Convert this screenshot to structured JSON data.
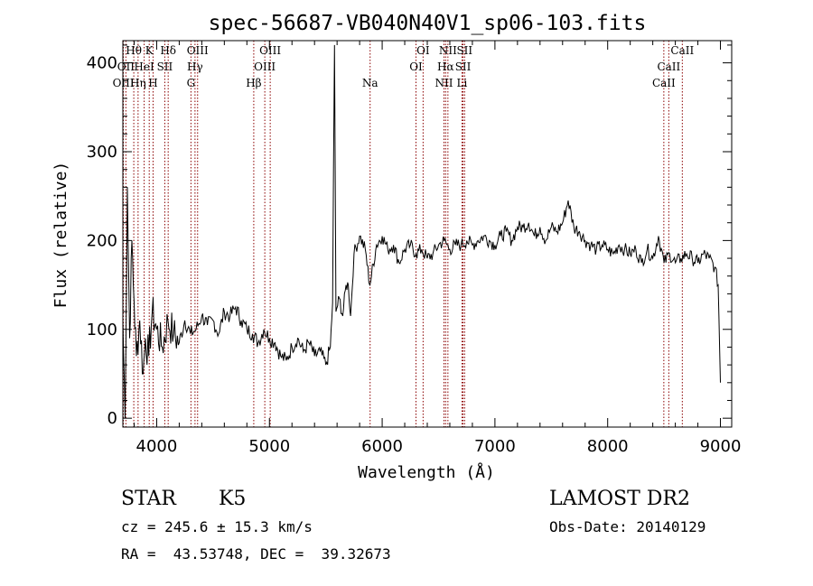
{
  "chart_data": {
    "type": "line",
    "title": "spec-56687-VB040N40V1_sp06-103.fits",
    "xlabel": "Wavelength (Å)",
    "ylabel": "Flux (relative)",
    "xlim": [
      3700,
      9100
    ],
    "ylim": [
      -10,
      425
    ],
    "x_ticks": [
      4000,
      5000,
      6000,
      7000,
      8000,
      9000
    ],
    "y_ticks": [
      0,
      100,
      200,
      300,
      400
    ],
    "series": [
      {
        "x": [
          3700,
          3720,
          3740,
          3760,
          3780,
          3800,
          3820,
          3850,
          3880,
          3900,
          3930,
          3960,
          4000,
          4050,
          4100,
          4150,
          4200,
          4250,
          4300,
          4350,
          4400,
          4450,
          4500,
          4550,
          4600,
          4650,
          4700,
          4750,
          4800,
          4850,
          4900,
          4950,
          5000,
          5050,
          5100,
          5150,
          5200,
          5250,
          5300,
          5350,
          5400,
          5450,
          5500,
          5540,
          5560,
          5577,
          5590,
          5620,
          5650,
          5680,
          5700,
          5720,
          5750,
          5800,
          5850,
          5890,
          5950,
          6000,
          6050,
          6100,
          6150,
          6200,
          6250,
          6300,
          6350,
          6400,
          6450,
          6500,
          6550,
          6600,
          6650,
          6700,
          6750,
          6800,
          6850,
          6900,
          6950,
          7000,
          7050,
          7100,
          7150,
          7200,
          7250,
          7300,
          7350,
          7400,
          7450,
          7500,
          7550,
          7600,
          7650,
          7700,
          7750,
          7800,
          7850,
          7900,
          7950,
          8000,
          8050,
          8100,
          8150,
          8200,
          8250,
          8300,
          8350,
          8400,
          8450,
          8500,
          8550,
          8600,
          8650,
          8700,
          8750,
          8800,
          8850,
          8900,
          8950,
          8980,
          9000
        ],
        "y": [
          110,
          0,
          260,
          90,
          200,
          130,
          70,
          110,
          50,
          90,
          70,
          120,
          100,
          80,
          110,
          95,
          85,
          110,
          95,
          100,
          115,
          105,
          110,
          95,
          120,
          115,
          125,
          110,
          100,
          95,
          85,
          100,
          90,
          85,
          70,
          65,
          80,
          90,
          75,
          85,
          70,
          75,
          60,
          80,
          130,
          420,
          120,
          135,
          115,
          150,
          150,
          115,
          185,
          205,
          190,
          150,
          195,
          205,
          190,
          195,
          175,
          190,
          195,
          185,
          190,
          180,
          185,
          195,
          200,
          190,
          195,
          195,
          200,
          195,
          200,
          205,
          200,
          195,
          205,
          210,
          200,
          215,
          215,
          220,
          205,
          215,
          200,
          215,
          210,
          220,
          245,
          215,
          210,
          200,
          195,
          190,
          195,
          190,
          185,
          195,
          190,
          185,
          190,
          175,
          190,
          180,
          205,
          175,
          185,
          175,
          180,
          185,
          180,
          175,
          185,
          180,
          170,
          150,
          40
        ]
      }
    ],
    "emission_lines": [
      {
        "label": "Hθ",
        "x": 3797,
        "row": 0
      },
      {
        "label": "K",
        "x": 3934,
        "row": 0
      },
      {
        "label": "Hδ",
        "x": 4102,
        "row": 0
      },
      {
        "label": "OIII",
        "x": 4363,
        "row": 0
      },
      {
        "label": "OIII",
        "x": 5007,
        "row": 0
      },
      {
        "label": "OI",
        "x": 6363,
        "row": 0
      },
      {
        "label": "NII",
        "x": 6583,
        "row": 0
      },
      {
        "label": "SII",
        "x": 6731,
        "row": 0
      },
      {
        "label": "CaII",
        "x": 8662,
        "row": 0
      },
      {
        "label": "OII",
        "x": 3727,
        "row": 1
      },
      {
        "label": "HeI",
        "x": 3889,
        "row": 1
      },
      {
        "label": "SII",
        "x": 4072,
        "row": 1
      },
      {
        "label": "Hγ",
        "x": 4340,
        "row": 1
      },
      {
        "label": "OIII",
        "x": 4959,
        "row": 1
      },
      {
        "label": "OI",
        "x": 6300,
        "row": 1
      },
      {
        "label": "Hα",
        "x": 6563,
        "row": 1
      },
      {
        "label": "SII",
        "x": 6717,
        "row": 1
      },
      {
        "label": "CaII",
        "x": 8542,
        "row": 1
      },
      {
        "label": "OIII",
        "x": 3705,
        "row": 2
      },
      {
        "label": "Hη",
        "x": 3835,
        "row": 2
      },
      {
        "label": "H",
        "x": 3968,
        "row": 2
      },
      {
        "label": "G",
        "x": 4304,
        "row": 2
      },
      {
        "label": "Hβ",
        "x": 4861,
        "row": 2
      },
      {
        "label": "Na",
        "x": 5893,
        "row": 2
      },
      {
        "label": "NII",
        "x": 6548,
        "row": 2
      },
      {
        "label": "Li",
        "x": 6708,
        "row": 2
      },
      {
        "label": "CaII",
        "x": 8498,
        "row": 2
      }
    ]
  },
  "info": {
    "class": "STAR",
    "subclass": "K5",
    "survey": "LAMOST DR2",
    "cz": "cz = 245.6 ± 15.3 km/s",
    "obs_date": "Obs-Date: 20140129",
    "coords": "RA =  43.53748, DEC =  39.32673"
  },
  "colors": {
    "line": "#000000",
    "marker_lines": "#8b0000"
  }
}
